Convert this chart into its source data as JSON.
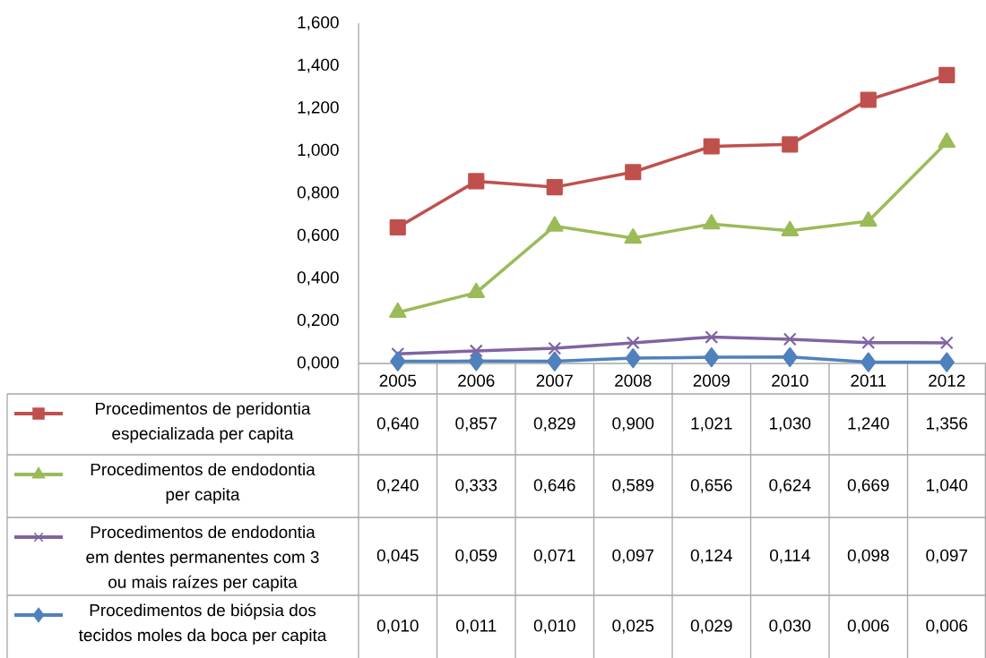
{
  "chart_data": {
    "type": "line",
    "categories": [
      "2005",
      "2006",
      "2007",
      "2008",
      "2009",
      "2010",
      "2011",
      "2012"
    ],
    "series": [
      {
        "name": "Procedimentos de peridontia especializada per capita",
        "color": "#c0504d",
        "marker": "square",
        "values": [
          0.64,
          0.857,
          0.829,
          0.9,
          1.021,
          1.03,
          1.24,
          1.356
        ],
        "value_labels": [
          "0,640",
          "0,857",
          "0,829",
          "0,900",
          "1,021",
          "1,030",
          "1,240",
          "1,356"
        ]
      },
      {
        "name": "Procedimentos de endodontia per capita",
        "color": "#9bbb59",
        "marker": "triangle",
        "values": [
          0.24,
          0.333,
          0.646,
          0.589,
          0.656,
          0.624,
          0.669,
          1.04
        ],
        "value_labels": [
          "0,240",
          "0,333",
          "0,646",
          "0,589",
          "0,656",
          "0,624",
          "0,669",
          "1,040"
        ]
      },
      {
        "name": "Procedimentos de endodontia em dentes permanentes com 3 ou mais raízes per capita",
        "color": "#8064a2",
        "marker": "cross",
        "values": [
          0.045,
          0.059,
          0.071,
          0.097,
          0.124,
          0.114,
          0.098,
          0.097
        ],
        "value_labels": [
          "0,045",
          "0,059",
          "0,071",
          "0,097",
          "0,124",
          "0,114",
          "0,098",
          "0,097"
        ]
      },
      {
        "name": "Procedimentos de biópsia dos tecidos moles da boca per capita",
        "color": "#4f81bd",
        "marker": "diamond",
        "values": [
          0.01,
          0.011,
          0.01,
          0.025,
          0.029,
          0.03,
          0.006,
          0.006
        ],
        "value_labels": [
          "0,010",
          "0,011",
          "0,010",
          "0,025",
          "0,029",
          "0,030",
          "0,006",
          "0,006"
        ]
      }
    ],
    "ylim": [
      0,
      1.6
    ],
    "yticks": [
      {
        "value": 0,
        "label": "0,000"
      },
      {
        "value": 0.2,
        "label": "0,200"
      },
      {
        "value": 0.4,
        "label": "0,400"
      },
      {
        "value": 0.6,
        "label": "0,600"
      },
      {
        "value": 0.8,
        "label": "0,800"
      },
      {
        "value": 1.0,
        "label": "1,000"
      },
      {
        "value": 1.2,
        "label": "1,200"
      },
      {
        "value": 1.4,
        "label": "1,400"
      },
      {
        "value": 1.6,
        "label": "1,600"
      }
    ],
    "legend": "bottom"
  }
}
